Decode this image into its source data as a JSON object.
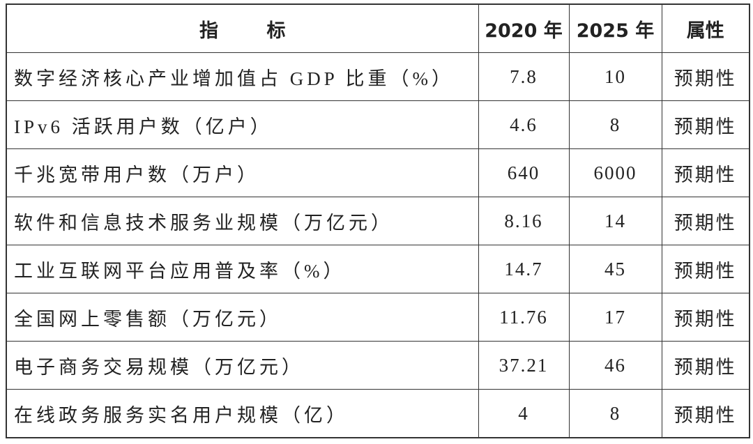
{
  "table": {
    "header": [
      "指 标",
      "2020 年",
      "2025 年",
      "属性"
    ],
    "rows": [
      [
        "数字经济核心产业增加值占 GDP 比重（%）",
        "7.8",
        "10",
        "预期性"
      ],
      [
        "IPv6 活跃用户数（亿户）",
        "4.6",
        "8",
        "预期性"
      ],
      [
        "千兆宽带用户数（万户）",
        "640",
        "6000",
        "预期性"
      ],
      [
        "软件和信息技术服务业规模（万亿元）",
        "8.16",
        "14",
        "预期性"
      ],
      [
        "工业互联网平台应用普及率（%）",
        "14.7",
        "45",
        "预期性"
      ],
      [
        "全国网上零售额（万亿元）",
        "11.76",
        "17",
        "预期性"
      ],
      [
        "电子商务交易规模（万亿元）",
        "37.21",
        "46",
        "预期性"
      ],
      [
        "在线政务服务实名用户规模（亿）",
        "4",
        "8",
        "预期性"
      ]
    ]
  }
}
